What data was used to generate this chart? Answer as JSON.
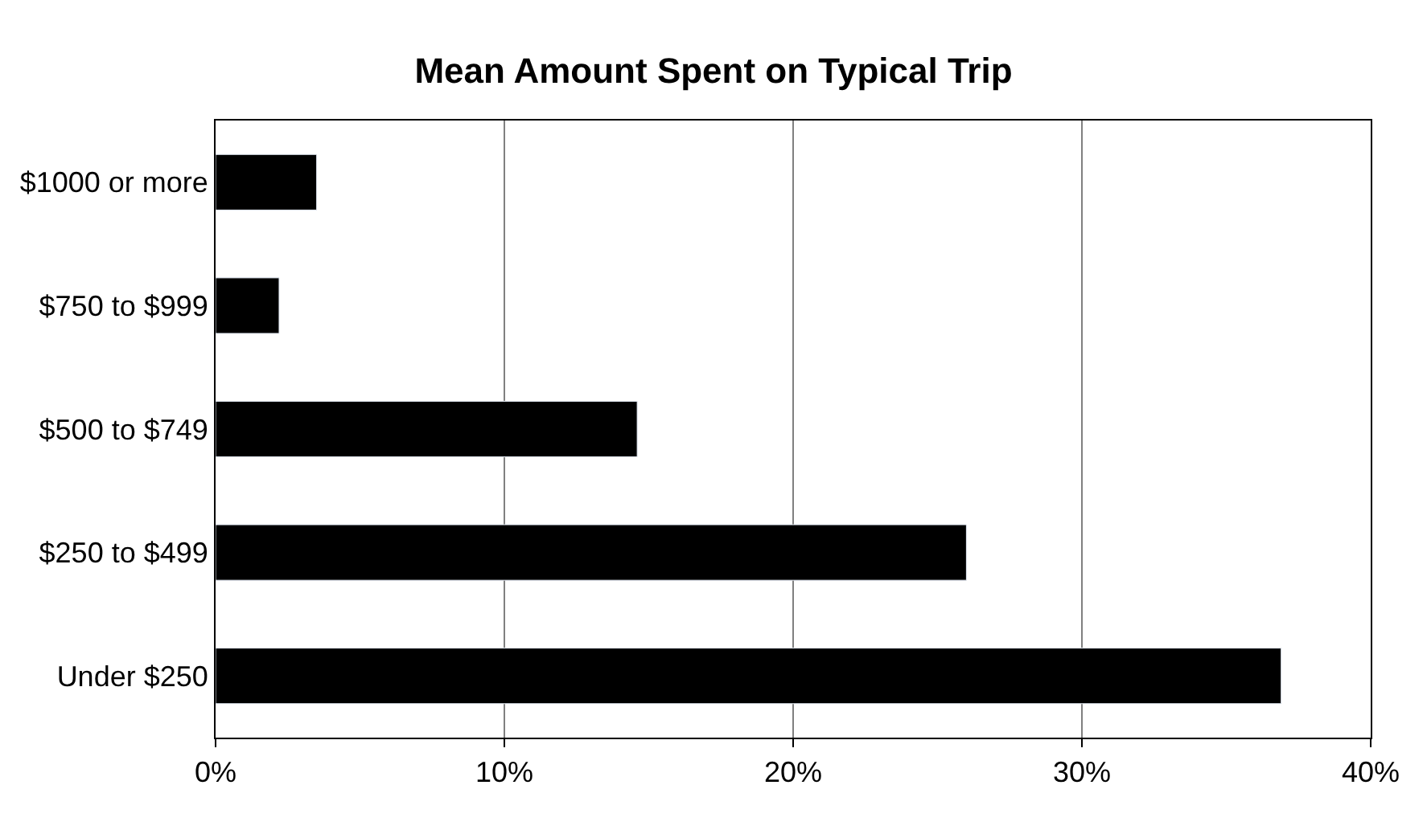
{
  "chart_data": {
    "type": "bar",
    "orientation": "horizontal",
    "title": "Mean Amount Spent on Typical Trip",
    "categories": [
      "$1000 or more",
      "$750 to $999",
      "$500 to $749",
      "$250 to $499",
      "Under $250"
    ],
    "values": [
      3.5,
      2.2,
      14.6,
      26.0,
      36.9
    ],
    "color": "#000000",
    "xlim": [
      0,
      40
    ],
    "xticks": [
      {
        "value": 0,
        "label": "0%"
      },
      {
        "value": 10,
        "label": "10%"
      },
      {
        "value": 20,
        "label": "20%"
      },
      {
        "value": 30,
        "label": "30%"
      },
      {
        "value": 40,
        "label": "40%"
      }
    ],
    "grid": "x",
    "legend": false
  }
}
